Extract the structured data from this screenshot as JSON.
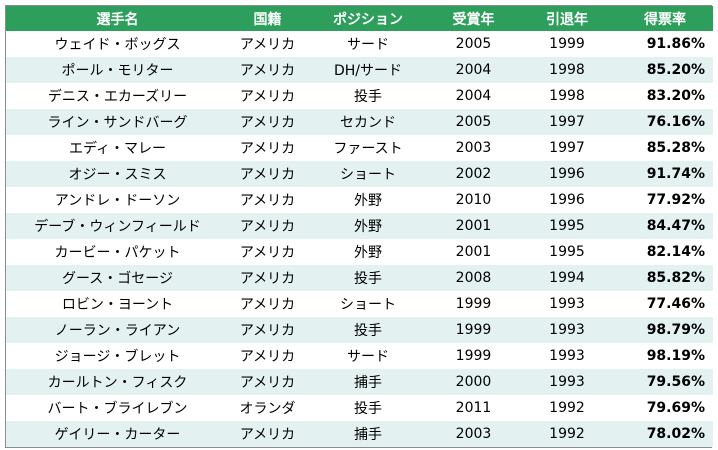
{
  "table": {
    "headers": [
      "選手名",
      "国籍",
      "ポジション",
      "受賞年",
      "引退年",
      "得票率"
    ],
    "rows": [
      [
        "ウェイド・ボッグス",
        "アメリカ",
        "サード",
        "2005",
        "1999",
        "91.86%"
      ],
      [
        "ポール・モリター",
        "アメリカ",
        "DH/サード",
        "2004",
        "1998",
        "85.20%"
      ],
      [
        "デニス・エカーズリー",
        "アメリカ",
        "投手",
        "2004",
        "1998",
        "83.20%"
      ],
      [
        "ライン・サンドバーグ",
        "アメリカ",
        "セカンド",
        "2005",
        "1997",
        "76.16%"
      ],
      [
        "エディ・マレー",
        "アメリカ",
        "ファースト",
        "2003",
        "1997",
        "85.28%"
      ],
      [
        "オジー・スミス",
        "アメリカ",
        "ショート",
        "2002",
        "1996",
        "91.74%"
      ],
      [
        "アンドレ・ドーソン",
        "アメリカ",
        "外野",
        "2010",
        "1996",
        "77.92%"
      ],
      [
        "デーブ・ウィンフィールド",
        "アメリカ",
        "外野",
        "2001",
        "1995",
        "84.47%"
      ],
      [
        "カービー・パケット",
        "アメリカ",
        "外野",
        "2001",
        "1995",
        "82.14%"
      ],
      [
        "グース・ゴセージ",
        "アメリカ",
        "投手",
        "2008",
        "1994",
        "85.82%"
      ],
      [
        "ロビン・ヨーント",
        "アメリカ",
        "ショート",
        "1999",
        "1993",
        "77.46%"
      ],
      [
        "ノーラン・ライアン",
        "アメリカ",
        "投手",
        "1999",
        "1993",
        "98.79%"
      ],
      [
        "ジョージ・ブレット",
        "アメリカ",
        "サード",
        "1999",
        "1993",
        "98.19%"
      ],
      [
        "カールトン・フィスク",
        "アメリカ",
        "捕手",
        "2000",
        "1993",
        "79.56%"
      ],
      [
        "バート・ブライレブン",
        "オランダ",
        "投手",
        "2011",
        "1992",
        "79.69%"
      ],
      [
        "ゲイリー・カーター",
        "アメリカ",
        "捕手",
        "2003",
        "1992",
        "78.02%"
      ]
    ]
  },
  "colors": {
    "header_bg": "#2e9e5c",
    "header_text": "#ffffff",
    "row_alt_bg": "#e3f2f1",
    "border": "#8c8c8c"
  }
}
